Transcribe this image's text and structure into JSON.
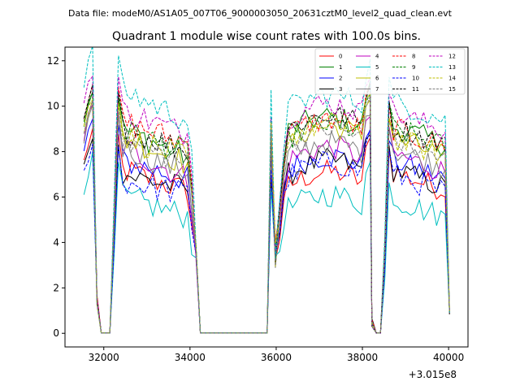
{
  "chart_data": {
    "type": "line",
    "suptitle": "Data file: modeM0/AS1A05_007T06_9000003050_20631cztM0_level2_quad_clean.evt",
    "title": "Quadrant 1 module wise count rates with 100.0s bins.",
    "xlabel": "",
    "ylabel": "",
    "x_offset_label": "+3.015e8",
    "xlim": [
      31100,
      40450
    ],
    "ylim": [
      -0.6,
      12.6
    ],
    "x_ticks": [
      32000,
      34000,
      36000,
      38000,
      40000
    ],
    "x_tick_labels": [
      "32000",
      "34000",
      "36000",
      "38000",
      "40000"
    ],
    "y_ticks": [
      0,
      2,
      4,
      6,
      8,
      10,
      12
    ],
    "y_tick_labels": [
      "0",
      "2",
      "4",
      "6",
      "8",
      "10",
      "12"
    ],
    "legend_position": "upper right",
    "legend_columns": 4,
    "x_segments": [
      [
        31540,
        31640,
        31740,
        31840,
        31940,
        32040,
        32140,
        32240,
        32340,
        32440,
        32540,
        32640,
        32740,
        32840,
        32940,
        33040,
        33140,
        33240,
        33340,
        33440,
        33540,
        33640,
        33740,
        33840,
        33940,
        34040,
        34140,
        34240
      ],
      [
        35880,
        35980,
        36080,
        36180,
        36280,
        36380,
        36480,
        36580,
        36680,
        36780,
        36880,
        36980,
        37080,
        37180,
        37280,
        37380,
        37480,
        37580,
        37680,
        37780,
        37880,
        37980,
        38080,
        38180
      ],
      [
        38220,
        38320,
        38420,
        38520,
        38620,
        38720,
        38820,
        38920,
        39020,
        39120,
        39220,
        39320,
        39420,
        39520,
        39620,
        39720,
        39820,
        39920,
        40020
      ]
    ],
    "series": [
      {
        "name": "0",
        "color": "#ff0000",
        "dash": "solid",
        "base": [
          7.5,
          6.5,
          6.9,
          6.5
        ]
      },
      {
        "name": "1",
        "color": "#008000",
        "dash": "solid",
        "base": [
          9.3,
          8.0,
          9.3,
          8.5
        ]
      },
      {
        "name": "2",
        "color": "#0000ff",
        "dash": "solid",
        "base": [
          7.9,
          7.0,
          7.6,
          7.0
        ]
      },
      {
        "name": "3",
        "color": "#000000",
        "dash": "solid",
        "base": [
          7.3,
          6.6,
          7.4,
          6.6
        ]
      },
      {
        "name": "4",
        "color": "#bf00bf",
        "dash": "solid",
        "base": [
          8.5,
          7.0,
          8.0,
          7.3
        ]
      },
      {
        "name": "5",
        "color": "#00bfbf",
        "dash": "solid",
        "base": [
          6.3,
          5.4,
          5.9,
          5.3
        ]
      },
      {
        "name": "6",
        "color": "#bfbf00",
        "dash": "solid",
        "base": [
          9.0,
          7.7,
          8.9,
          8.0
        ]
      },
      {
        "name": "7",
        "color": "#808080",
        "dash": "solid",
        "base": [
          8.5,
          7.3,
          8.2,
          7.5
        ]
      },
      {
        "name": "8",
        "color": "#ff0000",
        "dash": "dashed",
        "base": [
          9.6,
          8.6,
          9.2,
          8.4
        ]
      },
      {
        "name": "9",
        "color": "#008000",
        "dash": "dashed",
        "base": [
          9.2,
          8.2,
          9.0,
          8.4
        ]
      },
      {
        "name": "10",
        "color": "#0000ff",
        "dash": "dashed",
        "base": [
          7.0,
          6.4,
          7.3,
          6.4
        ]
      },
      {
        "name": "11",
        "color": "#000000",
        "dash": "dashed",
        "base": [
          9.3,
          8.3,
          9.4,
          8.5
        ]
      },
      {
        "name": "12",
        "color": "#bf00bf",
        "dash": "dashed",
        "base": [
          10.1,
          9.0,
          9.9,
          9.1
        ]
      },
      {
        "name": "13",
        "color": "#00bfbf",
        "dash": "dashed",
        "base": [
          11.0,
          9.6,
          10.3,
          9.6
        ]
      },
      {
        "name": "14",
        "color": "#bfbf00",
        "dash": "dashed",
        "base": [
          9.0,
          7.9,
          9.0,
          8.0
        ]
      },
      {
        "name": "15",
        "color": "#808080",
        "dash": "dashed",
        "base": [
          8.8,
          7.7,
          8.8,
          7.9
        ]
      }
    ]
  }
}
